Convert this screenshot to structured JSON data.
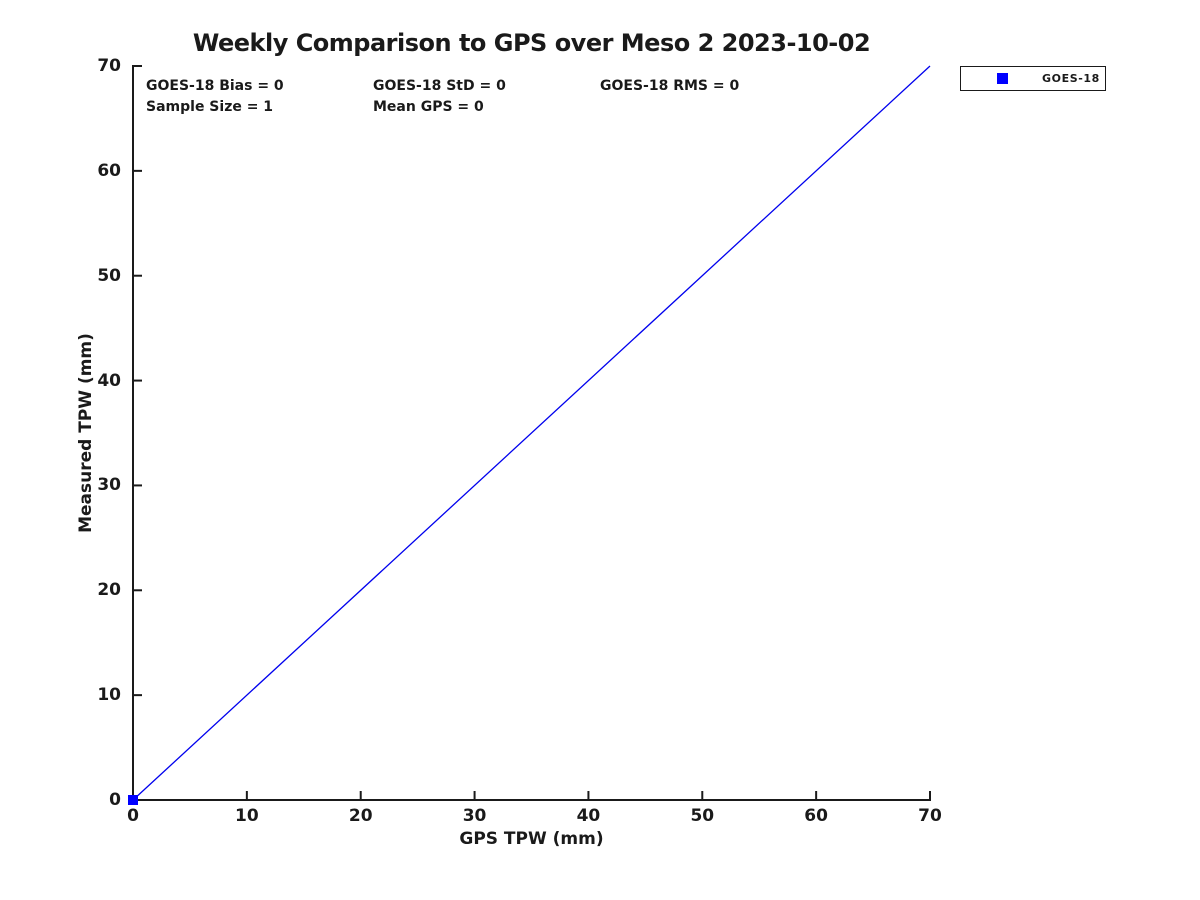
{
  "chart_data": {
    "type": "scatter",
    "title": "Weekly Comparison to GPS over Meso 2 2023-10-02",
    "xlabel": "GPS TPW (mm)",
    "ylabel": "Measured TPW (mm)",
    "xlim": [
      0,
      70
    ],
    "ylim": [
      0,
      70
    ],
    "xticks": [
      0,
      10,
      20,
      30,
      40,
      50,
      60,
      70
    ],
    "yticks": [
      0,
      10,
      20,
      30,
      40,
      50,
      60,
      70
    ],
    "grid": false,
    "colors": {
      "line": "#0000ee",
      "marker": "#0000ff",
      "ink": "#1a1a1a"
    },
    "reference_line": {
      "from": [
        0,
        0
      ],
      "to": [
        70,
        70
      ],
      "color": "#0000ee",
      "style": "solid"
    },
    "series": [
      {
        "name": "GOES-18",
        "marker": "square",
        "color": "#0000ff",
        "points": [
          {
            "x": 0,
            "y": 0
          }
        ]
      }
    ],
    "annotations": [
      {
        "text": "GOES-18 Bias = 0",
        "row": 0,
        "col": 0
      },
      {
        "text": "GOES-18 StD = 0",
        "row": 0,
        "col": 1
      },
      {
        "text": "GOES-18 RMS = 0",
        "row": 0,
        "col": 2
      },
      {
        "text": "Sample Size = 1",
        "row": 1,
        "col": 0
      },
      {
        "text": "Mean GPS = 0",
        "row": 1,
        "col": 1
      }
    ],
    "legend": {
      "position": "top-right-outside",
      "entries": [
        {
          "label": "GOES-18",
          "marker": "square",
          "marker_color": "#0000ff"
        }
      ]
    }
  }
}
